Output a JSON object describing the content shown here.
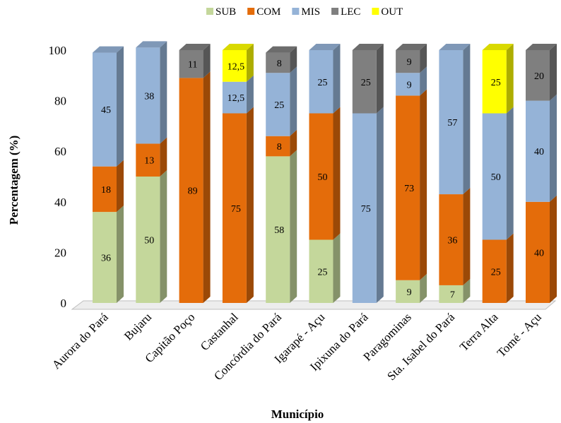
{
  "chart_data": {
    "type": "bar",
    "stacked": true,
    "three_d": true,
    "xlabel": "Município",
    "ylabel": "Percentagem (%)",
    "ylim": [
      0,
      100
    ],
    "yticks": [
      0,
      20,
      40,
      60,
      80,
      100
    ],
    "grid": false,
    "legend_position": "top",
    "categories": [
      "Aurora do Pará",
      "Bujaru",
      "Capitão Poço",
      "Castanhal",
      "Concórdia do Pará",
      "Igarapé - Açu",
      "Ipixuna do Pará",
      "Paragominas",
      "Sta. Isabel do Pará",
      "Terra Alta",
      "Tomé - Açu"
    ],
    "series": [
      {
        "name": "SUB",
        "color": "#c4d79b",
        "values": [
          36,
          50,
          0,
          0,
          58,
          25,
          0,
          9,
          7,
          0,
          0
        ],
        "labels": [
          "36",
          "50",
          "",
          "",
          "58",
          "25",
          "",
          "9",
          "7",
          "",
          ""
        ]
      },
      {
        "name": "COM",
        "color": "#e46c0a",
        "values": [
          18,
          13,
          89,
          75,
          8,
          50,
          0,
          73,
          36,
          25,
          40
        ],
        "labels": [
          "18",
          "13",
          "89",
          "75",
          "8",
          "50",
          "",
          "73",
          "36",
          "25",
          "40"
        ]
      },
      {
        "name": "MIS",
        "color": "#95b3d7",
        "values": [
          45,
          38,
          0,
          12.5,
          25,
          25,
          75,
          9,
          57,
          50,
          40
        ],
        "labels": [
          "45",
          "38",
          "",
          "12,5",
          "25",
          "25",
          "75",
          "9",
          "57",
          "50",
          "40"
        ]
      },
      {
        "name": "LEC",
        "color": "#7f7f7f",
        "values": [
          0,
          0,
          11,
          0,
          8,
          0,
          25,
          9,
          0,
          0,
          20
        ],
        "labels": [
          "",
          "",
          "11",
          "",
          "8",
          "",
          "25",
          "9",
          "",
          "",
          "20"
        ]
      },
      {
        "name": "OUT",
        "color": "#ffff00",
        "values": [
          0,
          0,
          0,
          12.5,
          0,
          0,
          0,
          0,
          0,
          25,
          0
        ],
        "labels": [
          "",
          "",
          "",
          "12,5",
          "",
          "",
          "",
          "",
          "",
          "25",
          ""
        ]
      }
    ]
  }
}
